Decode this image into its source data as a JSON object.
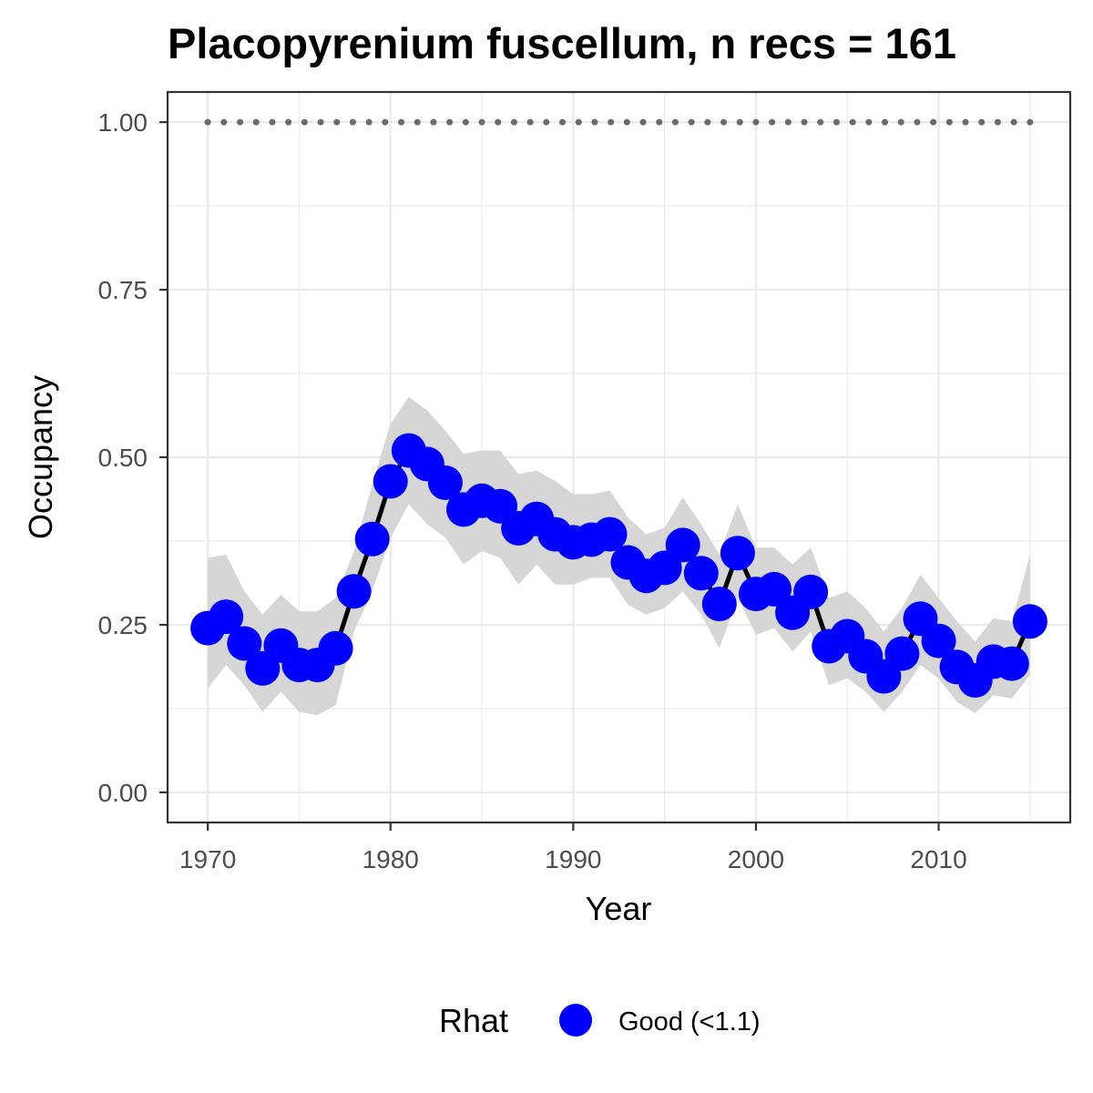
{
  "chart_data": {
    "type": "line",
    "title": "Placopyrenium fuscellum, n recs = 161",
    "xlabel": "Year",
    "ylabel": "Occupancy",
    "xlim": [
      1967.8,
      2017.2
    ],
    "ylim": [
      -0.045,
      1.045
    ],
    "x_ticks": [
      1970,
      1980,
      1990,
      2000,
      2010
    ],
    "x_tick_labels": [
      "1970",
      "1980",
      "1990",
      "2000",
      "2010"
    ],
    "y_ticks": [
      0,
      0.25,
      0.5,
      0.75,
      1
    ],
    "y_tick_labels": [
      "0.00",
      "0.25",
      "0.50",
      "0.75",
      "1.00"
    ],
    "grid": true,
    "legend": {
      "title": "Rhat",
      "position": "bottom",
      "entries": [
        {
          "label": "Good (<1.1)",
          "color": "#0000ff"
        }
      ]
    },
    "colors": {
      "points": "#0000ff",
      "line": "#000000",
      "ribbon": "#d6d6d6",
      "reference_line": "#6b6b6b",
      "grid": "#ebebeb",
      "panel_border": "#333333"
    },
    "reference_line": {
      "y": 1.0,
      "style": "dotted"
    },
    "series": [
      {
        "x": [
          1970,
          1971,
          1972,
          1973,
          1974,
          1975,
          1976,
          1977,
          1978,
          1979,
          1980,
          1981,
          1982,
          1983,
          1984,
          1985,
          1986,
          1987,
          1988,
          1989,
          1990,
          1991,
          1992,
          1993,
          1994,
          1995,
          1996,
          1997,
          1998,
          1999,
          2000,
          2001,
          2002,
          2003,
          2004,
          2005,
          2006,
          2007,
          2008,
          2009,
          2010,
          2011,
          2012,
          2013,
          2014,
          2015
        ],
        "y": [
          0.245,
          0.262,
          0.222,
          0.185,
          0.219,
          0.19,
          0.19,
          0.215,
          0.3,
          0.378,
          0.464,
          0.51,
          0.49,
          0.462,
          0.422,
          0.435,
          0.427,
          0.394,
          0.408,
          0.385,
          0.373,
          0.377,
          0.385,
          0.343,
          0.323,
          0.335,
          0.369,
          0.327,
          0.281,
          0.357,
          0.296,
          0.303,
          0.268,
          0.299,
          0.218,
          0.233,
          0.203,
          0.173,
          0.207,
          0.259,
          0.226,
          0.187,
          0.167,
          0.195,
          0.192,
          0.255
        ],
        "lower": [
          0.155,
          0.19,
          0.16,
          0.12,
          0.15,
          0.12,
          0.115,
          0.13,
          0.24,
          0.3,
          0.38,
          0.43,
          0.4,
          0.38,
          0.34,
          0.36,
          0.35,
          0.31,
          0.34,
          0.31,
          0.31,
          0.32,
          0.32,
          0.28,
          0.265,
          0.275,
          0.3,
          0.265,
          0.215,
          0.29,
          0.235,
          0.245,
          0.21,
          0.24,
          0.16,
          0.17,
          0.15,
          0.12,
          0.15,
          0.19,
          0.17,
          0.135,
          0.118,
          0.145,
          0.14,
          0.175
        ],
        "upper": [
          0.35,
          0.355,
          0.3,
          0.265,
          0.295,
          0.27,
          0.27,
          0.29,
          0.36,
          0.46,
          0.55,
          0.59,
          0.57,
          0.54,
          0.505,
          0.51,
          0.51,
          0.475,
          0.48,
          0.465,
          0.445,
          0.445,
          0.45,
          0.41,
          0.385,
          0.395,
          0.44,
          0.4,
          0.355,
          0.43,
          0.365,
          0.365,
          0.34,
          0.365,
          0.29,
          0.3,
          0.275,
          0.24,
          0.275,
          0.325,
          0.29,
          0.255,
          0.225,
          0.26,
          0.255,
          0.355
        ]
      }
    ]
  }
}
